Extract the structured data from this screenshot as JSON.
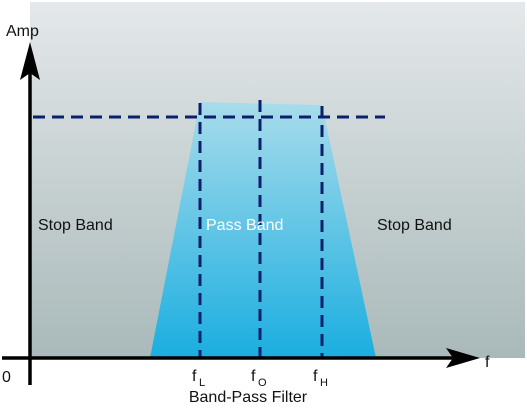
{
  "diagram": {
    "y_axis_label": "Amp",
    "x_axis_label": "f",
    "origin_label": "0",
    "caption": "Band-Pass Filter",
    "regions": {
      "stop_left": "Stop Band",
      "pass": "Pass Band",
      "stop_right": "Stop Band"
    },
    "markers": {
      "low": {
        "base": "f",
        "sub": "L"
      },
      "center": {
        "base": "f",
        "sub": "O"
      },
      "high": {
        "base": "f",
        "sub": "H"
      }
    },
    "colors": {
      "background_top": "#e4e8ea",
      "background_bottom": "#a9b9b9",
      "pass_top": "#a8dceb",
      "pass_bottom": "#1aaee0",
      "dashed_line": "#0c1f6b",
      "axis": "#000000"
    }
  }
}
